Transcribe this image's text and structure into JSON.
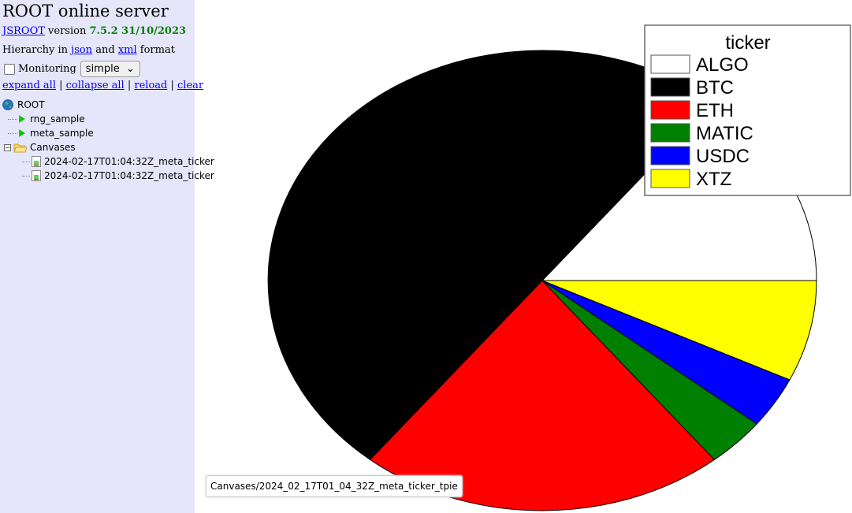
{
  "sidebar": {
    "title": "ROOT online server",
    "jsroot_link": "JSROOT",
    "version_word": "version",
    "version": "7.5.2 31/10/2023",
    "hier_prefix": "Hierarchy in",
    "json_link": "json",
    "and_word": "and",
    "xml_link": "xml",
    "format_word": "format",
    "monitoring_label": "Monitoring",
    "monitoring_checked": false,
    "monitoring_mode": "simple",
    "actions": [
      "expand all",
      "collapse all",
      "reload",
      "clear"
    ],
    "tree": {
      "root": "ROOT",
      "items": [
        "rng_sample",
        "meta_sample"
      ],
      "folder": "Canvases",
      "canvases": [
        "2024-02-17T01:04:32Z_meta_ticker",
        "2024-02-17T01:04:32Z_meta_ticker"
      ]
    }
  },
  "tooltip": "Canvases/2024_02_17T01_04_32Z_meta_ticker_tpie",
  "chart_data": {
    "type": "pie",
    "legend_title": "ticker",
    "legend_placement": "top-right",
    "categories": [
      "ALGO",
      "BTC",
      "ETH",
      "MATIC",
      "USDC",
      "XTZ"
    ],
    "values": [
      14.2,
      50.0,
      21.6,
      3.5,
      3.6,
      7.1
    ],
    "colors": [
      "#ffffff",
      "#000000",
      "#ff0000",
      "#008000",
      "#0000ff",
      "#ffff00"
    ]
  }
}
